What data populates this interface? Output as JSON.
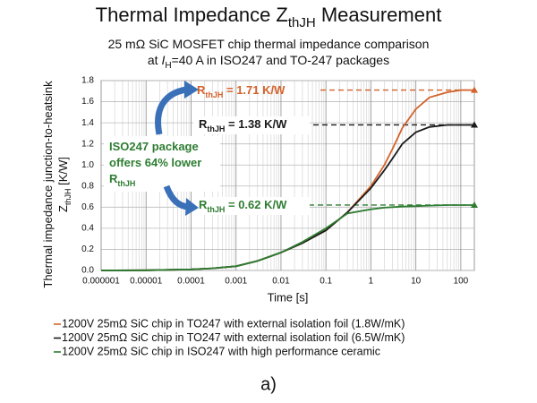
{
  "chart_data": {
    "type": "line",
    "title": [
      {
        "text": "Thermal Impedance Z"
      },
      {
        "text": "thJH",
        "sub": true
      },
      {
        "text": " Measurement"
      }
    ],
    "subtitle": [
      [
        {
          "text": "25 mΩ SiC MOSFET chip thermal impedance comparison"
        }
      ],
      [
        {
          "text": "at "
        },
        {
          "text": "I",
          "italic": true
        },
        {
          "text": "H",
          "sub": true
        },
        {
          "text": "=40 A in ISO247 and TO-247 packages"
        }
      ]
    ],
    "x_label": "Time [s]",
    "y_label": [
      [
        {
          "text": "Thermal impedance junction-to-heatsink"
        }
      ],
      [
        {
          "text": "Z"
        },
        {
          "text": "thJH",
          "sub": true
        },
        {
          "text": " [K/W]"
        }
      ]
    ],
    "log_x": true,
    "grid": true,
    "xlim": [
      1e-06,
      200
    ],
    "xticks": [
      1e-06,
      1e-05,
      0.0001,
      0.001,
      0.01,
      0.1,
      1,
      10,
      100
    ],
    "ylim": [
      0,
      1.8
    ],
    "yticks": [
      {
        "value": 0,
        "label": "0.0"
      },
      0.2,
      0.4,
      0.6,
      0.8,
      {
        "value": 1,
        "label": "1.0"
      },
      1.2,
      1.4,
      1.6,
      1.8
    ],
    "x": [
      1e-06,
      1e-05,
      0.0001,
      0.0003,
      0.001,
      0.003,
      0.01,
      0.03,
      0.1,
      0.3,
      1,
      2,
      3,
      5,
      10,
      20,
      50,
      100,
      200
    ],
    "series": [
      {
        "name": "1200V 25mΩ SiC chip in TO247 with external isolation foil (1.8W/mK)",
        "color": "#d4622a",
        "values": [
          0,
          0.002,
          0.01,
          0.02,
          0.04,
          0.09,
          0.17,
          0.26,
          0.38,
          0.55,
          0.8,
          1.0,
          1.15,
          1.35,
          1.53,
          1.64,
          1.69,
          1.71,
          1.71
        ]
      },
      {
        "name": "1200V 25mΩ SiC chip in TO247 with external isolation foil (6.5W/mK)",
        "color": "#1a1a1a",
        "values": [
          0,
          0.002,
          0.01,
          0.02,
          0.04,
          0.09,
          0.17,
          0.26,
          0.38,
          0.55,
          0.78,
          0.95,
          1.06,
          1.2,
          1.31,
          1.36,
          1.38,
          1.38,
          1.38
        ]
      },
      {
        "name": "1200V 25mΩ SiC chip in ISO247 with high performance ceramic",
        "color": "#2e7d32",
        "values": [
          0,
          0.002,
          0.01,
          0.02,
          0.04,
          0.09,
          0.17,
          0.27,
          0.4,
          0.54,
          0.58,
          0.595,
          0.6,
          0.605,
          0.61,
          0.615,
          0.62,
          0.62,
          0.62
        ]
      }
    ],
    "reference_lines": [
      {
        "value": 1.71,
        "color": "#d4622a"
      },
      {
        "value": 1.38,
        "color": "#1a1a1a"
      },
      {
        "value": 0.62,
        "color": "#2e7d32"
      }
    ],
    "annotations": [
      {
        "color": "#d4622a",
        "lines": [
          [
            {
              "text": "R"
            },
            {
              "text": "thJH",
              "sub": true
            },
            {
              "text": " = 1.71 K/W"
            }
          ]
        ]
      },
      {
        "color": "#1a1a1a",
        "lines": [
          [
            {
              "text": "R"
            },
            {
              "text": "thJH",
              "sub": true
            },
            {
              "text": " = 1.38 K/W"
            }
          ]
        ]
      },
      {
        "color": "#2e7d32",
        "lines": [
          [
            {
              "text": "R"
            },
            {
              "text": "thJH",
              "sub": true
            },
            {
              "text": " = 0.62 K/W"
            }
          ]
        ]
      },
      {
        "color": "#2e7d32",
        "lines": [
          [
            {
              "text": "ISO247 package"
            }
          ],
          [
            {
              "text": "offers 64% lower"
            }
          ],
          [
            {
              "text": "R"
            },
            {
              "text": "thJH",
              "sub": true
            }
          ]
        ]
      }
    ],
    "caption": "a)",
    "caption_color": "#2e7d32"
  }
}
